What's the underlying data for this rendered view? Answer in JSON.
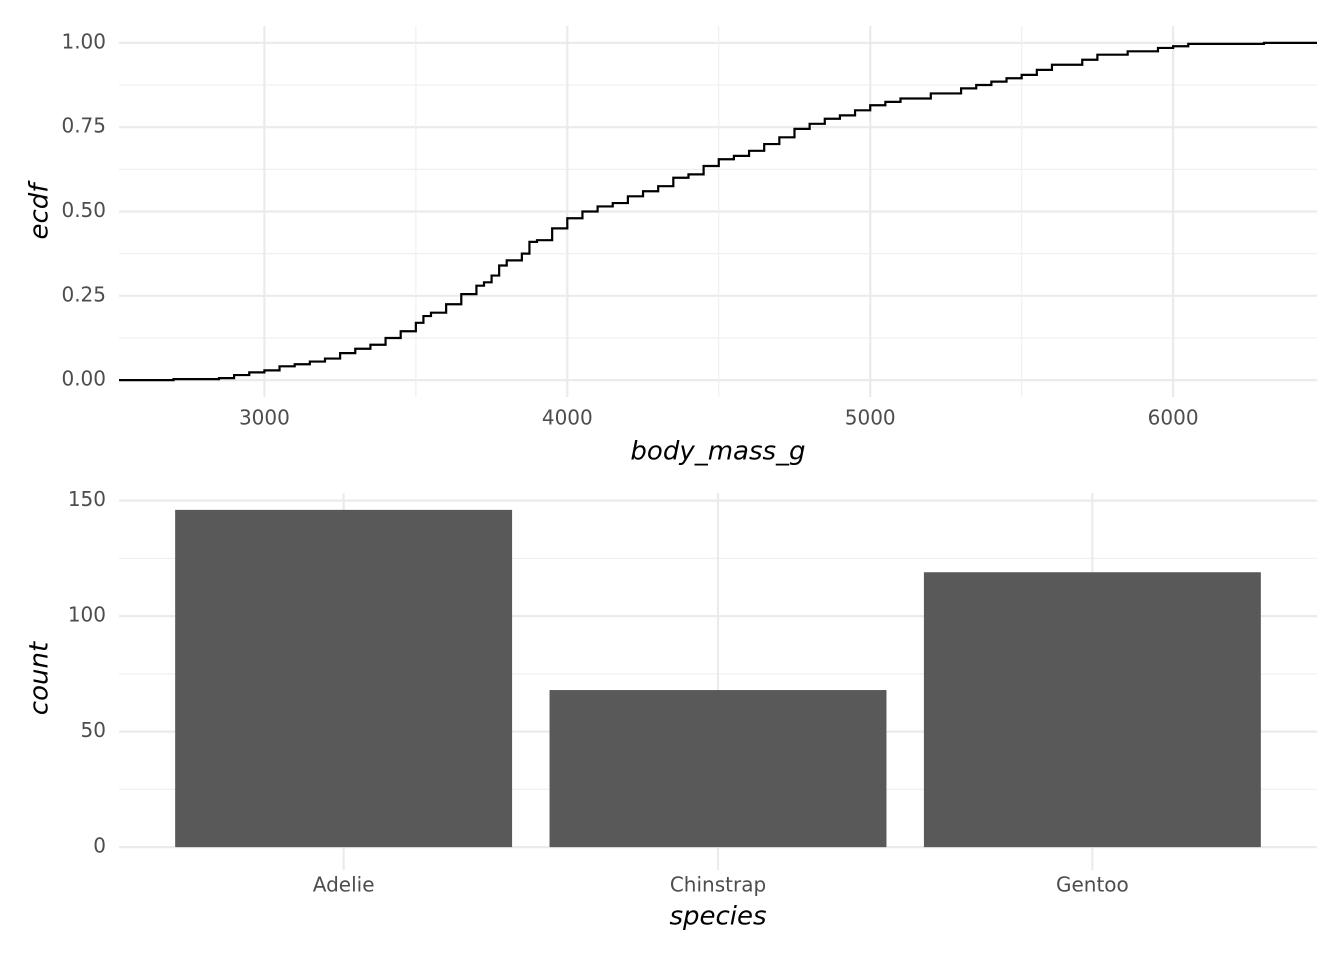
{
  "chart_data": [
    {
      "type": "step",
      "x_label": "body_mass_g",
      "y_label": "ecdf",
      "color": "#000000",
      "grid": true,
      "x": [
        2700,
        2850,
        2900,
        2950,
        3000,
        3050,
        3100,
        3150,
        3200,
        3250,
        3300,
        3350,
        3400,
        3450,
        3500,
        3525,
        3550,
        3600,
        3650,
        3700,
        3725,
        3750,
        3775,
        3800,
        3850,
        3875,
        3900,
        3950,
        4000,
        4050,
        4100,
        4150,
        4200,
        4250,
        4300,
        4350,
        4400,
        4450,
        4500,
        4550,
        4600,
        4650,
        4700,
        4750,
        4800,
        4850,
        4900,
        4950,
        5000,
        5050,
        5100,
        5200,
        5300,
        5350,
        5400,
        5450,
        5500,
        5550,
        5600,
        5700,
        5750,
        5850,
        5950,
        6000,
        6050,
        6300
      ],
      "values": [
        0.003,
        0.006,
        0.015,
        0.023,
        0.029,
        0.041,
        0.047,
        0.055,
        0.064,
        0.08,
        0.093,
        0.105,
        0.125,
        0.145,
        0.17,
        0.19,
        0.2,
        0.225,
        0.255,
        0.28,
        0.29,
        0.31,
        0.34,
        0.355,
        0.375,
        0.41,
        0.415,
        0.45,
        0.48,
        0.5,
        0.515,
        0.525,
        0.545,
        0.56,
        0.575,
        0.6,
        0.61,
        0.635,
        0.655,
        0.665,
        0.68,
        0.7,
        0.72,
        0.745,
        0.76,
        0.775,
        0.785,
        0.8,
        0.815,
        0.825,
        0.835,
        0.85,
        0.865,
        0.875,
        0.885,
        0.895,
        0.905,
        0.92,
        0.935,
        0.95,
        0.965,
        0.975,
        0.985,
        0.99,
        0.997,
        1.0
      ],
      "xlim": [
        2520,
        6475
      ],
      "xticks": [
        3000,
        4000,
        5000,
        6000
      ],
      "ylim": [
        -0.05,
        1.05
      ],
      "yticks": [
        {
          "value": 0,
          "label": "0.00"
        },
        {
          "value": 0.25,
          "label": "0.25"
        },
        {
          "value": 0.5,
          "label": "0.50"
        },
        {
          "value": 0.75,
          "label": "0.75"
        },
        {
          "value": 1,
          "label": "1.00"
        }
      ]
    },
    {
      "type": "bar",
      "x_label": "species",
      "y_label": "count",
      "color": "#595959",
      "grid": true,
      "categories": [
        "Adelie",
        "Chinstrap",
        "Gentoo"
      ],
      "values": [
        146,
        68,
        119
      ],
      "ylim": [
        -7.3,
        153.3
      ],
      "yticks": [
        0,
        50,
        100,
        150
      ]
    }
  ]
}
